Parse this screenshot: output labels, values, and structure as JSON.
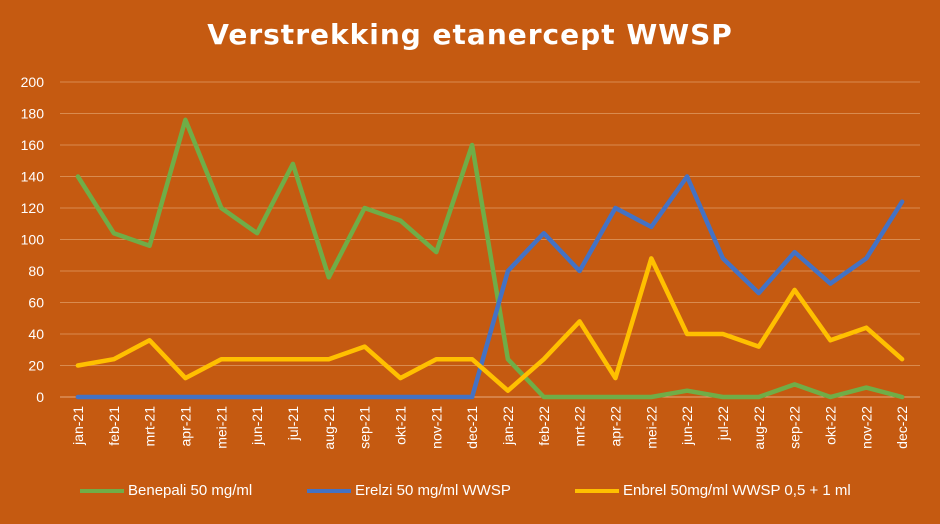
{
  "chart_data": {
    "type": "line",
    "title": "Verstrekking etanercept WWSP",
    "categories": [
      "jan-21",
      "feb-21",
      "mrt-21",
      "apr-21",
      "mei-21",
      "jun-21",
      "jul-21",
      "aug-21",
      "sep-21",
      "okt-21",
      "nov-21",
      "dec-21",
      "jan-22",
      "feb-22",
      "mrt-22",
      "apr-22",
      "mei-22",
      "jun-22",
      "jul-22",
      "aug-22",
      "sep-22",
      "okt-22",
      "nov-22",
      "dec-22"
    ],
    "ylim": [
      0,
      200
    ],
    "yticks": [
      0,
      20,
      40,
      60,
      80,
      100,
      120,
      140,
      160,
      180,
      200
    ],
    "grid": true,
    "legend_position": "bottom",
    "series": [
      {
        "name": "Benepali 50 mg/ml",
        "color": "#70ad47",
        "values": [
          140,
          104,
          96,
          176,
          120,
          104,
          148,
          76,
          120,
          112,
          92,
          160,
          24,
          0,
          0,
          0,
          0,
          4,
          0,
          0,
          8,
          0,
          6,
          0
        ]
      },
      {
        "name": "Erelzi 50 mg/ml WWSP",
        "color": "#4472c4",
        "values": [
          0,
          0,
          0,
          0,
          0,
          0,
          0,
          0,
          0,
          0,
          0,
          0,
          80,
          104,
          80,
          120,
          108,
          140,
          88,
          66,
          92,
          72,
          88,
          124
        ]
      },
      {
        "name": "Enbrel 50mg/ml WWSP 0,5 + 1 ml",
        "color": "#ffc000",
        "values": [
          20,
          24,
          36,
          12,
          24,
          24,
          24,
          24,
          32,
          12,
          24,
          24,
          4,
          24,
          48,
          12,
          88,
          40,
          40,
          32,
          68,
          36,
          44,
          24
        ]
      }
    ]
  }
}
